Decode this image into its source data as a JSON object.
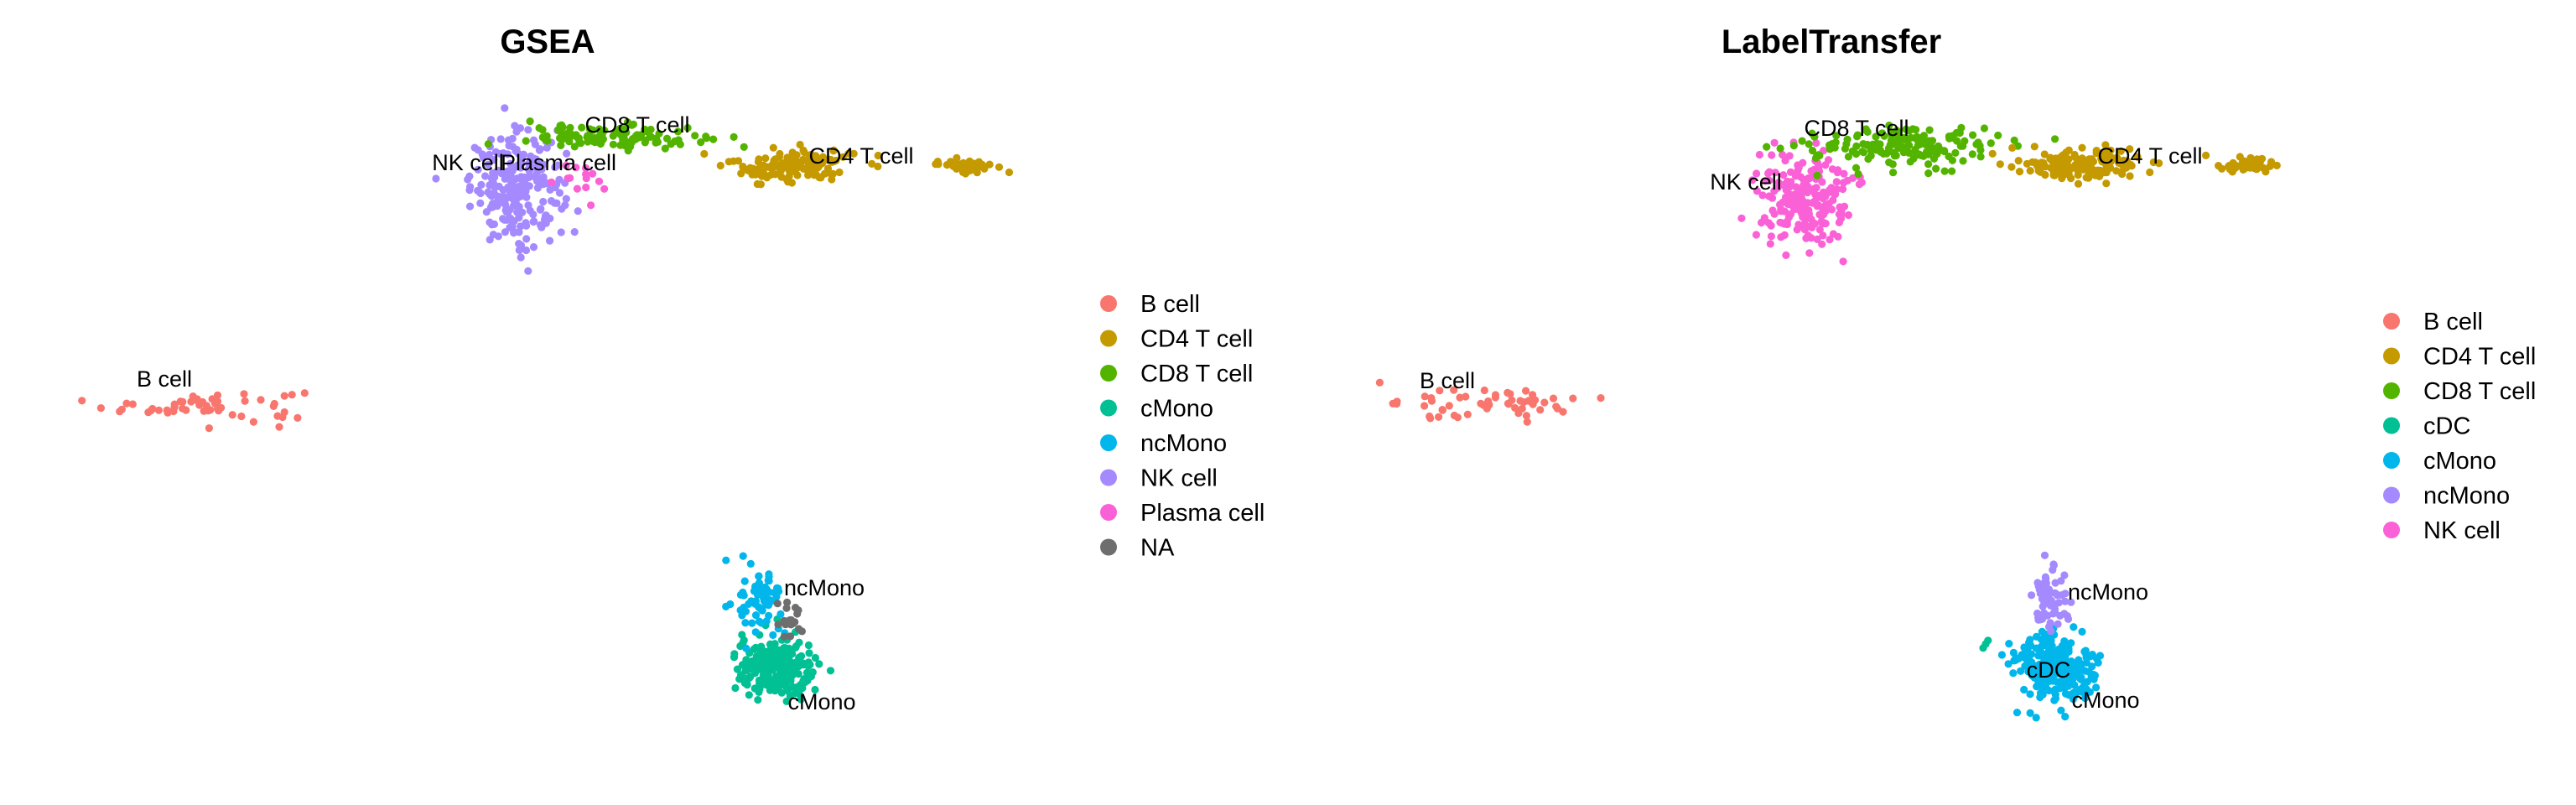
{
  "chart_data": [
    {
      "type": "scatter",
      "title": "GSEA",
      "xlabel": "",
      "ylabel": "",
      "grid": false,
      "legend_placement": "right",
      "legend": [
        {
          "name": "B cell",
          "color": "#F8766D"
        },
        {
          "name": "CD4 T cell",
          "color": "#C49A00"
        },
        {
          "name": "CD8 T cell",
          "color": "#53B400"
        },
        {
          "name": "cMono",
          "color": "#00C094"
        },
        {
          "name": "ncMono",
          "color": "#00B6EB"
        },
        {
          "name": "NK cell",
          "color": "#A58AFF"
        },
        {
          "name": "Plasma cell",
          "color": "#FB61D7"
        },
        {
          "name": "NA",
          "color": "#6E6E6E"
        }
      ],
      "labels": [
        "CD8 T cell",
        "NK cell",
        "Plasma cell",
        "CD4 T cell",
        "B cell",
        "ncMono",
        "cMono"
      ],
      "clusters": [
        {
          "name": "B cell",
          "center": [
            -9.6,
            -0.9
          ],
          "spread": [
            1.6,
            0.28
          ],
          "n": 55,
          "color": "#F8766D"
        },
        {
          "name": "NK cell",
          "center": [
            -4.1,
            3.3
          ],
          "spread": [
            0.75,
            0.95
          ],
          "n": 230,
          "color": "#A58AFF"
        },
        {
          "name": "CD8 T cell",
          "center": [
            -2.4,
            4.3
          ],
          "spread": [
            1.4,
            0.2
          ],
          "n": 110,
          "color": "#53B400"
        },
        {
          "name": "Plasma cell",
          "center": [
            -3.0,
            3.4
          ],
          "spread": [
            0.55,
            0.4
          ],
          "n": 14,
          "color": "#FB61D7"
        },
        {
          "name": "CD4 T cell",
          "center": [
            0.8,
            3.75
          ],
          "spread": [
            1.0,
            0.3
          ],
          "n": 140,
          "color": "#C49A00"
        },
        {
          "name": "CD4 T cell",
          "center": [
            3.8,
            3.75
          ],
          "spread": [
            0.5,
            0.12
          ],
          "n": 40,
          "color": "#C49A00"
        },
        {
          "name": "cMono",
          "center": [
            0.5,
            -6.0
          ],
          "spread": [
            0.65,
            0.55
          ],
          "n": 230,
          "color": "#00C094"
        },
        {
          "name": "ncMono",
          "center": [
            0.2,
            -4.7
          ],
          "spread": [
            0.35,
            0.55
          ],
          "n": 70,
          "color": "#00B6EB"
        },
        {
          "name": "NA",
          "center": [
            0.75,
            -5.1
          ],
          "spread": [
            0.22,
            0.35
          ],
          "n": 18,
          "color": "#6E6E6E"
        }
      ]
    },
    {
      "type": "scatter",
      "title": "LabelTransfer",
      "xlabel": "",
      "ylabel": "",
      "grid": false,
      "legend_placement": "right",
      "legend": [
        {
          "name": "B cell",
          "color": "#F8766D"
        },
        {
          "name": "CD4 T cell",
          "color": "#C49A00"
        },
        {
          "name": "CD8 T cell",
          "color": "#53B400"
        },
        {
          "name": "cDC",
          "color": "#00C094"
        },
        {
          "name": "cMono",
          "color": "#00B6EB"
        },
        {
          "name": "ncMono",
          "color": "#A58AFF"
        },
        {
          "name": "NK cell",
          "color": "#FB61D7"
        }
      ],
      "labels": [
        "CD8 T cell",
        "NK cell",
        "CD4 T cell",
        "B cell",
        "ncMono",
        "cDC",
        "cMono"
      ],
      "clusters": [
        {
          "name": "B cell",
          "center": [
            -9.6,
            -0.9
          ],
          "spread": [
            1.6,
            0.28
          ],
          "n": 55,
          "color": "#F8766D"
        },
        {
          "name": "NK cell",
          "center": [
            -4.0,
            3.1
          ],
          "spread": [
            0.75,
            0.85
          ],
          "n": 200,
          "color": "#FB61D7"
        },
        {
          "name": "CD8 T cell",
          "center": [
            -2.3,
            4.1
          ],
          "spread": [
            1.5,
            0.35
          ],
          "n": 160,
          "color": "#53B400"
        },
        {
          "name": "CD4 T cell",
          "center": [
            0.8,
            3.75
          ],
          "spread": [
            1.0,
            0.3
          ],
          "n": 140,
          "color": "#C49A00"
        },
        {
          "name": "CD4 T cell",
          "center": [
            3.8,
            3.75
          ],
          "spread": [
            0.5,
            0.12
          ],
          "n": 40,
          "color": "#C49A00"
        },
        {
          "name": "cMono",
          "center": [
            0.4,
            -6.0
          ],
          "spread": [
            0.7,
            0.6
          ],
          "n": 260,
          "color": "#00B6EB"
        },
        {
          "name": "ncMono",
          "center": [
            0.3,
            -4.6
          ],
          "spread": [
            0.3,
            0.55
          ],
          "n": 70,
          "color": "#A58AFF"
        },
        {
          "name": "cDC",
          "center": [
            -0.8,
            -5.5
          ],
          "spread": [
            0.1,
            0.1
          ],
          "n": 3,
          "color": "#00C094"
        }
      ]
    }
  ]
}
